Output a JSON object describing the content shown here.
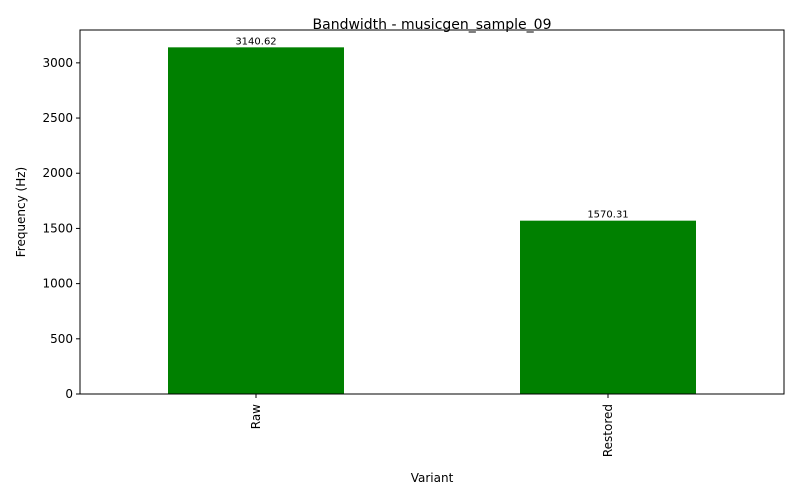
{
  "chart_data": {
    "type": "bar",
    "title": "Bandwidth - musicgen_sample_09",
    "xlabel": "Variant",
    "ylabel": "Frequency (Hz)",
    "categories": [
      "Raw",
      "Restored"
    ],
    "values": [
      3140.62,
      1570.31
    ],
    "value_labels": [
      "3140.62",
      "1570.31"
    ],
    "ylim": [
      0,
      3297.65
    ],
    "yticks": [
      0,
      500,
      1000,
      1500,
      2000,
      2500,
      3000
    ],
    "bar_color": "#008000",
    "grid": false,
    "legend": "none"
  }
}
